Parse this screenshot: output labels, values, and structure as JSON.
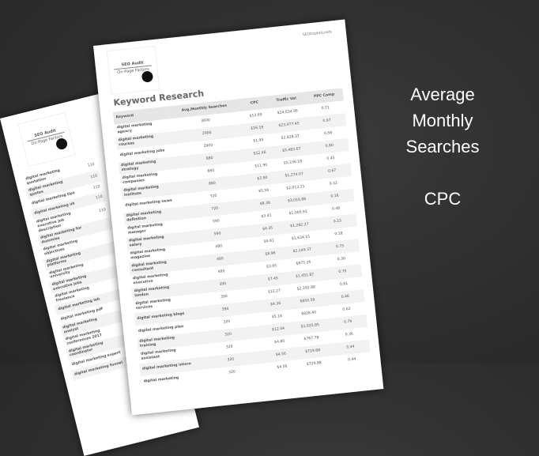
{
  "front": {
    "logo_title": "SEO Audit",
    "logo_subtitle": "On-Page Factors",
    "brand": "SEODigitalLeads",
    "heading": "Keyword Research",
    "columns": [
      "Keyword",
      "Avg.Monthly Searches",
      "CPC",
      "Traffic Val",
      "PPC Comp"
    ],
    "rows": [
      [
        "digital marketing agency",
        "3600",
        "$13.69",
        "$24,634.95",
        "0.71"
      ],
      [
        "digital marketing courses",
        "2900",
        "$16.19",
        "$23,477.45",
        "0.97"
      ],
      [
        "digital marketing jobs",
        "2900",
        "$1.95",
        "$2,828.37",
        "0.58"
      ],
      [
        "digital marketing strategy",
        "880",
        "$12.46",
        "$5,483.67",
        "0.80"
      ],
      [
        "digital marketing companies",
        "880",
        "$11.90",
        "$5,236.18",
        "0.45"
      ],
      [
        "digital marketing institute",
        "880",
        "$2.90",
        "$1,274.07",
        "0.67"
      ],
      [
        "digital marketing news",
        "720",
        "$5.59",
        "$2,013.21",
        "0.32"
      ],
      [
        "digital marketing definition",
        "720",
        "$8.38",
        "$3,016.88",
        "0.16"
      ],
      [
        "digital marketing manager",
        "590",
        "$3.41",
        "$1,005.92",
        "0.48"
      ],
      [
        "digital marketing salary",
        "590",
        "$4.35",
        "$1,282.27",
        "0.23"
      ],
      [
        "digital marketing magazine",
        "480",
        "$6.81",
        "$1,634.15",
        "0.18"
      ],
      [
        "digital marketing consultant",
        "480",
        "$8.96",
        "$2,149.37",
        "0.75"
      ],
      [
        "digital marketing executive",
        "480",
        "$3.65",
        "$875.26",
        "0.30"
      ],
      [
        "digital marketing london",
        "390",
        "$7.45",
        "$1,451.87",
        "0.75"
      ],
      [
        "digital marketing services",
        "390",
        "$12.27",
        "$2,392.88",
        "0.61"
      ],
      [
        "digital marketing blogs",
        "390",
        "$4.36",
        "$850.59",
        "0.46"
      ],
      [
        "digital marketing plan",
        "320",
        "$5.18",
        "$828.40",
        "0.62"
      ],
      [
        "digital marketing training",
        "320",
        "$12.04",
        "$1,925.85",
        "0.79"
      ],
      [
        "digital marketing assistant",
        "320",
        "$4.80",
        "$767.78",
        "0.36"
      ],
      [
        "digital marketing intern",
        "320",
        "$4.56",
        "$729.88",
        "0.44"
      ],
      [
        "digital marketing",
        "320",
        "$4.56",
        "$729.88",
        "0.44"
      ]
    ]
  },
  "back": {
    "logo_title": "SEO Audit",
    "logo_subtitle": "On-Page Factors",
    "rows": [
      [
        "digital marketing quotation",
        "110"
      ],
      [
        "digital marketing quotes",
        "110"
      ],
      [
        "digital marketing tips",
        "110"
      ],
      [
        "digital marketing uk",
        "110"
      ],
      [
        "digital marketing executive job description",
        "110"
      ],
      [
        "digital marketing for dummies",
        ""
      ],
      [
        "digital marketing objectives",
        ""
      ],
      [
        "digital marketing platforms",
        ""
      ],
      [
        "digital marketing university",
        ""
      ],
      [
        "digital marketing executive jobs",
        ""
      ],
      [
        "digital marketing freelance",
        ""
      ],
      [
        "digital marketing lab",
        ""
      ],
      [
        "digital marketing pdf",
        ""
      ],
      [
        "digital marketing analyst",
        ""
      ],
      [
        "digital marketing conferences 2017",
        ""
      ],
      [
        "digital marketing coordinator",
        ""
      ],
      [
        "digital marketing expert",
        ""
      ],
      [
        "digital marketing funnel",
        ""
      ]
    ]
  },
  "labels": {
    "line1": "Average",
    "line2": "Monthly",
    "line3": "Searches",
    "line4": "CPC"
  }
}
